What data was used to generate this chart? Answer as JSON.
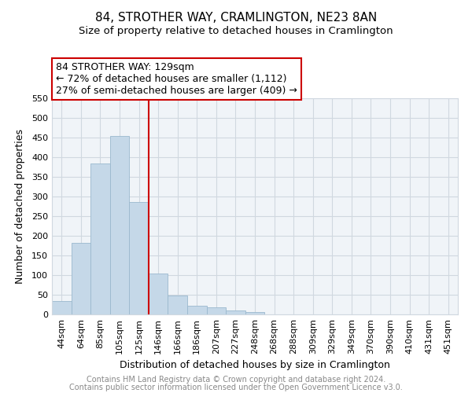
{
  "title": "84, STROTHER WAY, CRAMLINGTON, NE23 8AN",
  "subtitle": "Size of property relative to detached houses in Cramlington",
  "xlabel": "Distribution of detached houses by size in Cramlington",
  "ylabel": "Number of detached properties",
  "footer_line1": "Contains HM Land Registry data © Crown copyright and database right 2024.",
  "footer_line2": "Contains public sector information licensed under the Open Government Licence v3.0.",
  "bar_labels": [
    "44sqm",
    "64sqm",
    "85sqm",
    "105sqm",
    "125sqm",
    "146sqm",
    "166sqm",
    "186sqm",
    "207sqm",
    "227sqm",
    "248sqm",
    "268sqm",
    "288sqm",
    "309sqm",
    "329sqm",
    "349sqm",
    "370sqm",
    "390sqm",
    "410sqm",
    "431sqm",
    "451sqm"
  ],
  "bar_values": [
    35,
    182,
    384,
    455,
    287,
    104,
    49,
    22,
    18,
    10,
    7,
    1,
    0,
    0,
    0,
    0,
    1,
    0,
    0,
    0,
    1
  ],
  "bar_color": "#c5d8e8",
  "bar_edgecolor": "#9ab8ce",
  "grid_color": "#d0d8e0",
  "background_color": "#f0f4f8",
  "ylim": [
    0,
    550
  ],
  "yticks": [
    0,
    50,
    100,
    150,
    200,
    250,
    300,
    350,
    400,
    450,
    500,
    550
  ],
  "vline_x": 4.5,
  "vline_color": "#cc0000",
  "annotation_title": "84 STROTHER WAY: 129sqm",
  "annotation_line1": "← 72% of detached houses are smaller (1,112)",
  "annotation_line2": "27% of semi-detached houses are larger (409) →",
  "annotation_box_edgecolor": "#cc0000",
  "title_fontsize": 11,
  "subtitle_fontsize": 9.5,
  "xlabel_fontsize": 9,
  "ylabel_fontsize": 9,
  "annotation_fontsize": 9,
  "footer_fontsize": 7,
  "tick_fontsize": 8,
  "footer_color": "#888888"
}
